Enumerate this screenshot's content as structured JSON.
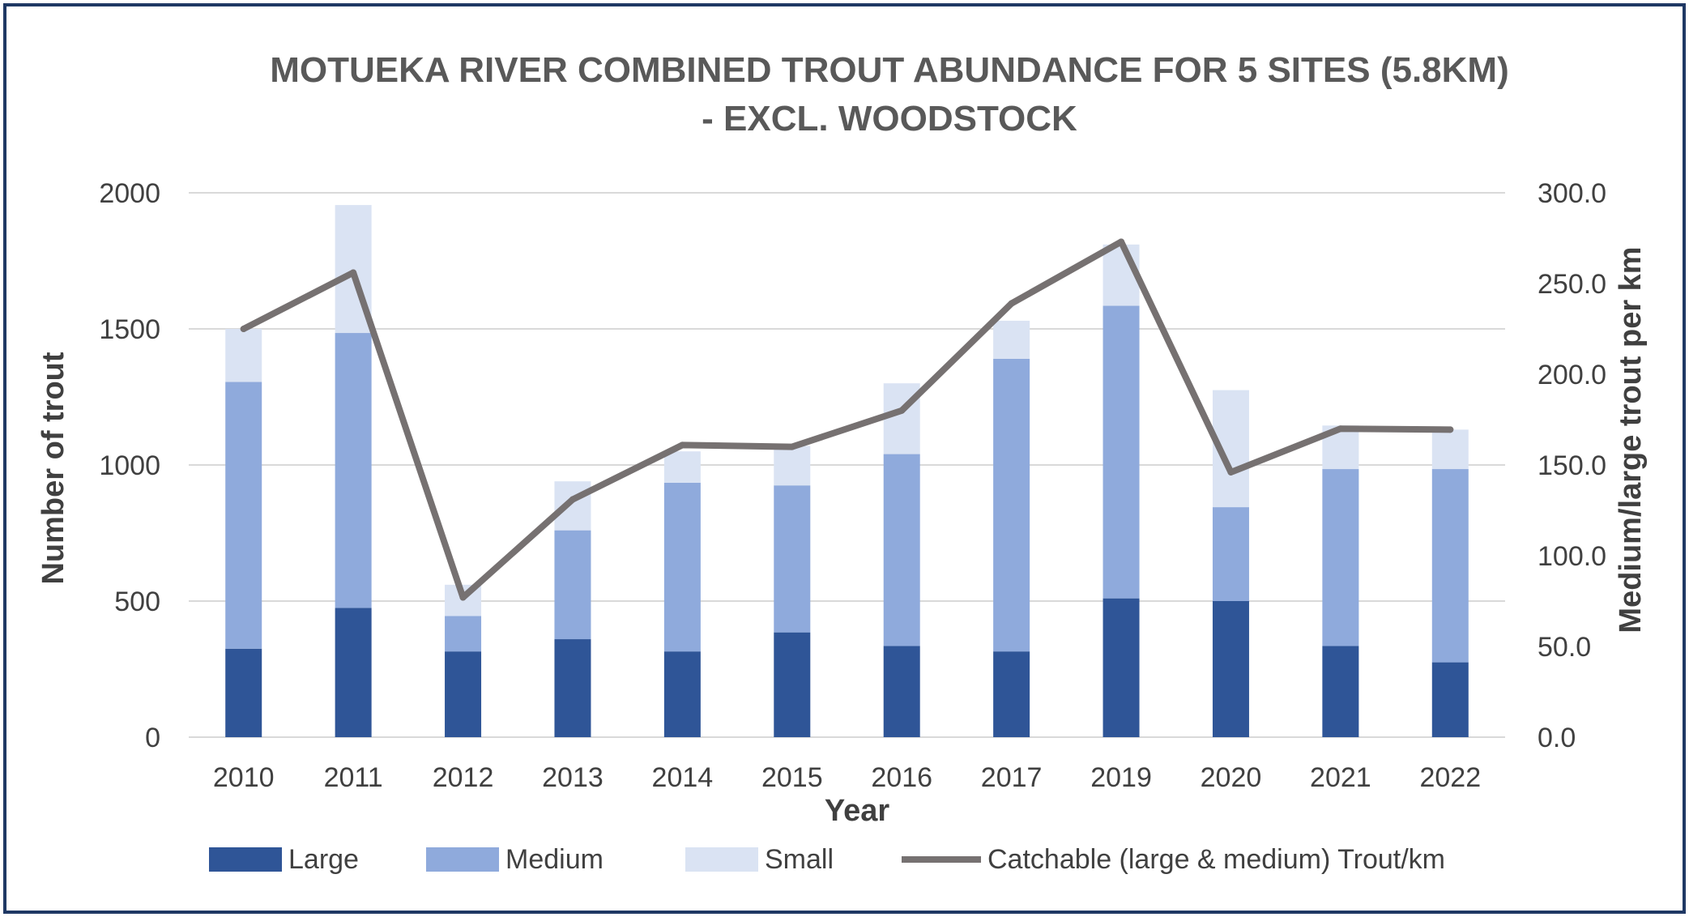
{
  "chart_data": {
    "type": "bar",
    "stacked": true,
    "title_lines": [
      "MOTUEKA RIVER COMBINED TROUT ABUNDANCE FOR 5 SITES (5.8KM)",
      "- EXCL. WOODSTOCK"
    ],
    "xlabel": "Year",
    "ylabel": "Number of trout",
    "y2label": "Medium/large trout per km",
    "categories": [
      "2010",
      "2011",
      "2012",
      "2013",
      "2014",
      "2015",
      "2016",
      "2017",
      "2019",
      "2020",
      "2021",
      "2022"
    ],
    "ylim": [
      0,
      2000
    ],
    "yticks": [
      "0",
      "500",
      "1000",
      "1500",
      "2000"
    ],
    "y2lim": [
      0,
      300
    ],
    "y2ticks": [
      "0.0",
      "50.0",
      "100.0",
      "150.0",
      "200.0",
      "250.0",
      "300.0"
    ],
    "grid": true,
    "legend_position": "bottom",
    "series": [
      {
        "name": "Large",
        "type": "bar",
        "axis": "left",
        "color": "#2f5597",
        "values": [
          325,
          475,
          315,
          360,
          315,
          385,
          335,
          315,
          510,
          500,
          335,
          275
        ]
      },
      {
        "name": "Medium",
        "type": "bar",
        "axis": "left",
        "color": "#8faadc",
        "values": [
          980,
          1010,
          130,
          400,
          620,
          540,
          705,
          1075,
          1075,
          345,
          650,
          710
        ]
      },
      {
        "name": "Small",
        "type": "bar",
        "axis": "left",
        "color": "#dae3f3",
        "values": [
          195,
          470,
          115,
          180,
          115,
          145,
          260,
          140,
          225,
          430,
          160,
          145
        ]
      },
      {
        "name": "Catchable (large & medium) Trout/km",
        "type": "line",
        "axis": "right",
        "color": "#767171",
        "values": [
          225,
          256,
          77,
          131,
          161,
          160,
          180,
          239,
          273,
          146,
          170,
          169.5
        ]
      }
    ]
  }
}
